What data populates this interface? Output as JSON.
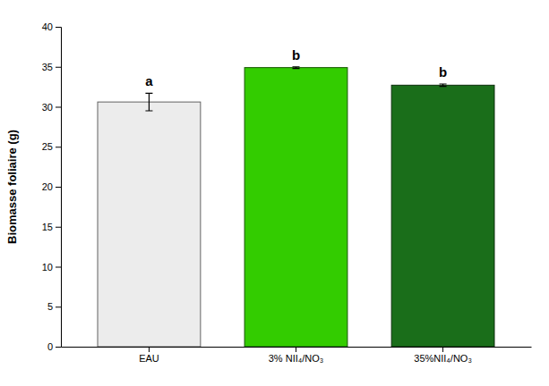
{
  "chart_data": {
    "type": "bar",
    "y_label": "Biomasse foliaire (g)",
    "categories": [
      "EAU",
      "3% NII₄/NO₃",
      "35%NII₄/NO₃"
    ],
    "values": [
      30.6,
      34.9,
      32.7
    ],
    "errors": [
      1.1,
      0.1,
      0.15
    ],
    "colors": [
      "#ececec",
      "#33cc00",
      "#1a6e1a"
    ],
    "annotations": [
      "a",
      "b",
      "b"
    ],
    "ylim": [
      0,
      40
    ],
    "yticks": [
      0,
      5,
      10,
      15,
      20,
      25,
      30,
      35,
      40
    ],
    "grid": false
  }
}
